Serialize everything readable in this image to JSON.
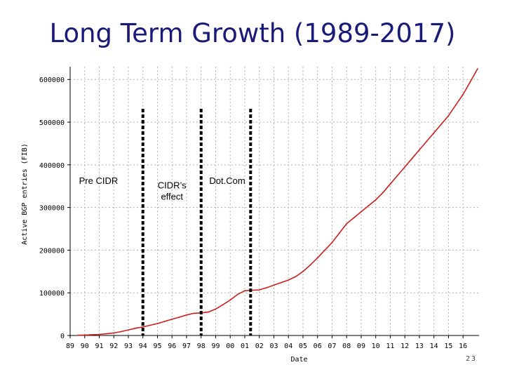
{
  "slide": {
    "title": "Long Term Growth (1989-2017)",
    "number": "23"
  },
  "chart_data": {
    "type": "line",
    "ylabel": "Active BGP entries (FIB)",
    "xlabel": "Date",
    "ylim": [
      0,
      630000
    ],
    "yticks": [
      0,
      100000,
      200000,
      300000,
      400000,
      500000,
      600000
    ],
    "xticks": [
      "89",
      "90",
      "91",
      "92",
      "93",
      "94",
      "95",
      "96",
      "97",
      "98",
      "99",
      "00",
      "01",
      "02",
      "03",
      "04",
      "05",
      "06",
      "07",
      "08",
      "09",
      "10",
      "11",
      "12",
      "13",
      "14",
      "15",
      "16"
    ],
    "xlim": [
      1989,
      2017.1
    ],
    "grid": true,
    "line_color": "#cc1f1f",
    "marker_color": "#000000",
    "series": [
      {
        "x": [
          1989.5,
          1990,
          1990.5,
          1991,
          1991.5,
          1992,
          1992.5,
          1993,
          1993.5,
          1994,
          1994.5,
          1995,
          1995.5,
          1996,
          1996.5,
          1997,
          1997.5,
          1998,
          1998.5,
          1999,
          1999.5,
          2000,
          2000.5,
          2001,
          2001.5,
          2002,
          2002.5,
          2003,
          2003.5,
          2004,
          2004.5,
          2005,
          2005.5,
          2006,
          2006.5,
          2007,
          2007.5,
          2008,
          2008.5,
          2009,
          2009.5,
          2010,
          2010.5,
          2011,
          2011.5,
          2012,
          2012.5,
          2013,
          2013.5,
          2014,
          2014.5,
          2015,
          2015.5,
          2016,
          2016.5,
          2017
        ],
        "values": [
          500,
          1000,
          1800,
          2500,
          4000,
          6000,
          9000,
          13000,
          17000,
          20000,
          24000,
          28000,
          33000,
          38000,
          43000,
          48000,
          52000,
          53000,
          55000,
          62000,
          72000,
          83000,
          96000,
          105000,
          106000,
          107000,
          112000,
          118000,
          124000,
          130000,
          138000,
          150000,
          165000,
          182000,
          200000,
          218000,
          240000,
          262000,
          276000,
          290000,
          304000,
          318000,
          335000,
          355000,
          375000,
          395000,
          415000,
          435000,
          455000,
          475000,
          495000,
          515000,
          540000,
          565000,
          595000,
          625000
        ]
      }
    ],
    "markers": [
      1994,
      1998,
      2001.4
    ],
    "annotations": [
      {
        "text": "Pre CIDR",
        "x": 1990.95,
        "y": 355000
      },
      {
        "text": "CIDR’s effect",
        "x": 1996.0,
        "y": 345000
      },
      {
        "text": "Dot.Com",
        "x": 1999.8,
        "y": 355000
      }
    ]
  }
}
